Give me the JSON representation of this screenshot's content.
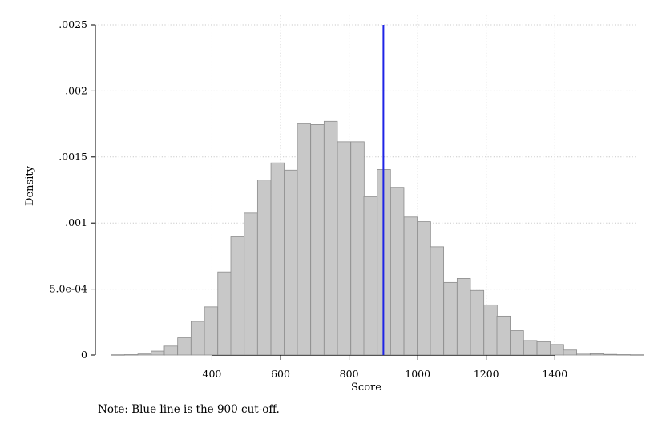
{
  "chart_data": {
    "type": "bar",
    "title": "",
    "xlabel": "Score",
    "ylabel": "Density",
    "xlim": [
      60,
      1640
    ],
    "ylim": [
      0,
      0.0025
    ],
    "x_ticks": [
      400,
      600,
      800,
      1000,
      1200,
      1400
    ],
    "x_tick_labels": [
      "400",
      "600",
      "800",
      "1000",
      "1200",
      "1400"
    ],
    "y_ticks": [
      0,
      0.0005,
      0.001,
      0.0015,
      0.002,
      0.0025
    ],
    "y_tick_labels": [
      "0",
      "5.0e-04",
      ".001",
      ".0015",
      ".002",
      ".0025"
    ],
    "grid": true,
    "bin_width": 38.8,
    "bins": [
      {
        "x0": 106,
        "value": 2e-06
      },
      {
        "x0": 145,
        "value": 3e-06
      },
      {
        "x0": 184,
        "value": 8e-06
      },
      {
        "x0": 223,
        "value": 3e-05
      },
      {
        "x0": 261,
        "value": 6.8e-05
      },
      {
        "x0": 300,
        "value": 0.00013
      },
      {
        "x0": 339,
        "value": 0.000255
      },
      {
        "x0": 378,
        "value": 0.000365
      },
      {
        "x0": 417,
        "value": 0.00063
      },
      {
        "x0": 455,
        "value": 0.000895
      },
      {
        "x0": 494,
        "value": 0.001075
      },
      {
        "x0": 533,
        "value": 0.001325
      },
      {
        "x0": 572,
        "value": 0.001455
      },
      {
        "x0": 611,
        "value": 0.0014
      },
      {
        "x0": 649,
        "value": 0.00175
      },
      {
        "x0": 688,
        "value": 0.001745
      },
      {
        "x0": 727,
        "value": 0.00177
      },
      {
        "x0": 766,
        "value": 0.001615
      },
      {
        "x0": 805,
        "value": 0.001615
      },
      {
        "x0": 843,
        "value": 0.0012
      },
      {
        "x0": 882,
        "value": 0.001405
      },
      {
        "x0": 921,
        "value": 0.00127
      },
      {
        "x0": 960,
        "value": 0.001045
      },
      {
        "x0": 999,
        "value": 0.00101
      },
      {
        "x0": 1037,
        "value": 0.00082
      },
      {
        "x0": 1076,
        "value": 0.00055
      },
      {
        "x0": 1115,
        "value": 0.00058
      },
      {
        "x0": 1154,
        "value": 0.00049
      },
      {
        "x0": 1193,
        "value": 0.00038
      },
      {
        "x0": 1231,
        "value": 0.000295
      },
      {
        "x0": 1270,
        "value": 0.000185
      },
      {
        "x0": 1309,
        "value": 0.00011
      },
      {
        "x0": 1348,
        "value": 0.0001
      },
      {
        "x0": 1387,
        "value": 8e-05
      },
      {
        "x0": 1425,
        "value": 3.8e-05
      },
      {
        "x0": 1464,
        "value": 1.4e-05
      },
      {
        "x0": 1503,
        "value": 1e-05
      },
      {
        "x0": 1542,
        "value": 5e-06
      },
      {
        "x0": 1581,
        "value": 3e-06
      },
      {
        "x0": 1620,
        "value": 2e-06
      }
    ],
    "cutoff_line": {
      "x": 900,
      "color": "#1f24e6"
    },
    "bar_fill": "#c8c8c8",
    "bar_stroke": "#8c8c8c"
  },
  "note": "Note: Blue line is the 900 cut-off."
}
